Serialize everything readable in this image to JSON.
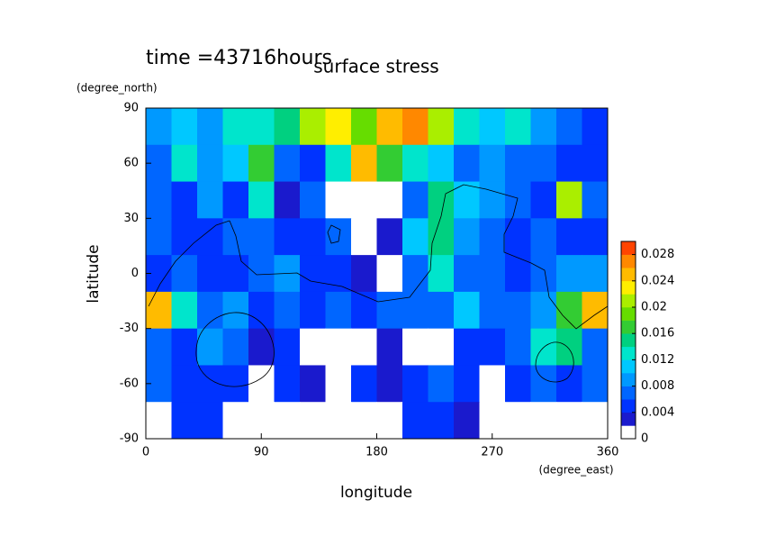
{
  "chart_data": {
    "type": "contour",
    "title": "surface stress",
    "subtitle": "time =43716hours",
    "x_label": "longitude",
    "x_unit": "(degree_east)",
    "y_label": "latitude",
    "y_unit": "(degree_north)",
    "x": [
      10,
      30,
      50,
      70,
      90,
      110,
      130,
      150,
      170,
      190,
      210,
      230,
      250,
      270,
      290,
      310,
      330,
      350
    ],
    "y": [
      80,
      60,
      40,
      20,
      0,
      -20,
      -40,
      -60,
      -80
    ],
    "z": [
      [
        0.008,
        0.01,
        0.008,
        0.012,
        0.012,
        0.014,
        0.02,
        0.022,
        0.018,
        0.024,
        0.026,
        0.02,
        0.012,
        0.01,
        0.012,
        0.008,
        0.006,
        0.004
      ],
      [
        0.006,
        0.012,
        0.008,
        0.01,
        0.016,
        0.006,
        0.004,
        0.012,
        0.024,
        0.016,
        0.012,
        0.01,
        0.006,
        0.008,
        0.006,
        0.006,
        0.004,
        0.004
      ],
      [
        0.006,
        0.004,
        0.008,
        0.004,
        0.012,
        0.002,
        0.006,
        0,
        0,
        0,
        0.006,
        0.014,
        0.01,
        0.008,
        0.006,
        0.004,
        0.02,
        0.006
      ],
      [
        0.006,
        0.004,
        0.004,
        0.006,
        0.006,
        0.004,
        0.004,
        0.006,
        0,
        0.002,
        0.01,
        0.014,
        0.008,
        0.006,
        0.004,
        0.006,
        0.004,
        0.004
      ],
      [
        0.004,
        0.006,
        0.004,
        0.004,
        0.006,
        0.008,
        0.004,
        0.004,
        0.002,
        0,
        0.006,
        0.012,
        0.006,
        0.006,
        0.004,
        0.006,
        0.008,
        0.008
      ],
      [
        0.024,
        0.012,
        0.006,
        0.008,
        0.004,
        0.006,
        0.004,
        0.006,
        0.004,
        0.006,
        0.006,
        0.006,
        0.01,
        0.006,
        0.006,
        0.008,
        0.016,
        0.024
      ],
      [
        0.006,
        0.004,
        0.008,
        0.006,
        0.002,
        0.004,
        0,
        0,
        0,
        0.002,
        0,
        0,
        0.004,
        0.004,
        0.006,
        0.012,
        0.014,
        0.006
      ],
      [
        0.006,
        0.004,
        0.004,
        0.004,
        0,
        0.004,
        0.002,
        0,
        0.004,
        0.002,
        0.004,
        0.006,
        0.004,
        0,
        0.004,
        0.006,
        0.004,
        0.006
      ],
      [
        0,
        0.004,
        0.004,
        0,
        0,
        0,
        0,
        0,
        0,
        0,
        0.004,
        0.004,
        0.002,
        0,
        0,
        0,
        0,
        0
      ]
    ],
    "xlim": [
      0,
      360
    ],
    "xticks": [
      0,
      90,
      180,
      270,
      360
    ],
    "ylim": [
      -90,
      90
    ],
    "yticks": [
      -90,
      -60,
      -30,
      0,
      30,
      60,
      90
    ],
    "clim": [
      0,
      0.03
    ],
    "cticks": [
      0,
      0.004,
      0.008,
      0.012,
      0.016,
      0.02,
      0.024,
      0.028
    ],
    "colors": [
      "#ffffff",
      "#1a1acd",
      "#0033ff",
      "#0066ff",
      "#0099ff",
      "#00c8ff",
      "#00e5cc",
      "#00d080",
      "#33cc33",
      "#66dd00",
      "#aaee00",
      "#ffee00",
      "#ffbb00",
      "#ff8800",
      "#ff4400"
    ]
  }
}
